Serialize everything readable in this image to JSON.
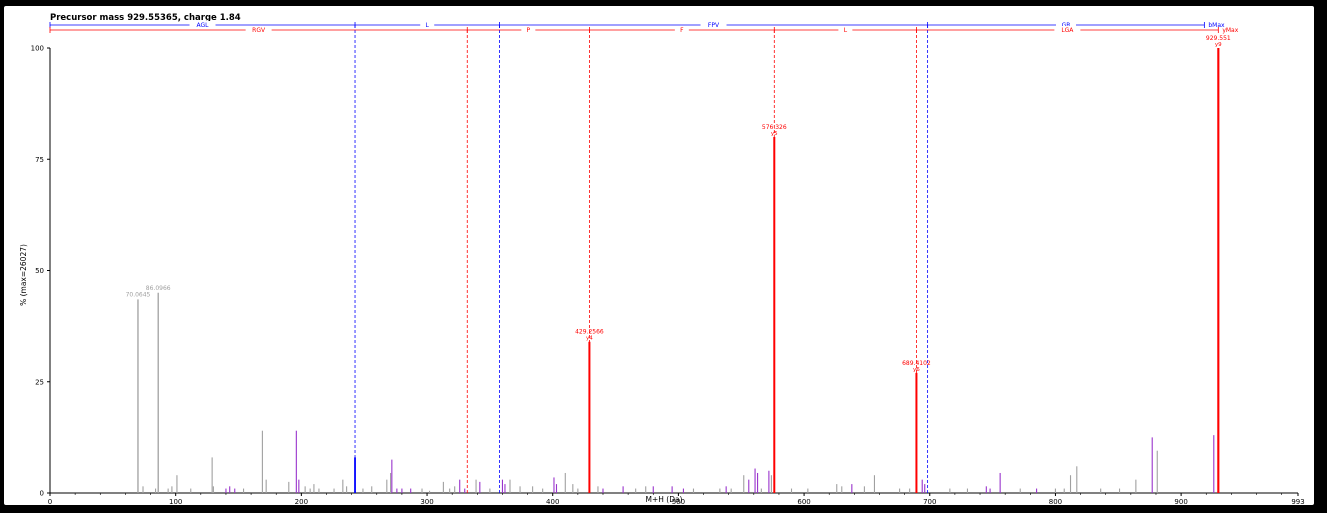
{
  "chart_data": {
    "type": "bar",
    "title": "Precursor mass 929.55365, charge 1.84",
    "xlabel": "M+H (Da)",
    "ylabel": "% (max=26027)",
    "xlim": [
      0,
      993
    ],
    "ylim": [
      0,
      100
    ],
    "x_ticks": [
      "0",
      "100",
      "200",
      "300",
      "400",
      "500",
      "600",
      "700",
      "800",
      "900",
      "993"
    ],
    "y_ticks": [
      "0",
      "25",
      "50",
      "75",
      "100"
    ],
    "colors": {
      "unmatched": "#a0a0a0",
      "b_ions": "#0000ff",
      "y_ions": "#ff0000",
      "internal": "#9933cc"
    },
    "b_ladder": {
      "label_first": "AGL",
      "segments": [
        "L",
        "FPV",
        "GR"
      ],
      "label_end": "bMax",
      "breaks": [
        242.7,
        357.6,
        698.3,
        918.5
      ]
    },
    "y_ladder": {
      "label_first": "RGV",
      "segments": [
        "P",
        "F",
        "L",
        "LGA"
      ],
      "label_end": "yMax",
      "breaks": [
        332.0,
        429.2,
        576.3,
        689.4,
        929.6
      ]
    },
    "labeled_peaks": [
      {
        "x": 70.0,
        "y": 43.5,
        "label": "70.0645",
        "sublabel": "",
        "kind": "unmatched"
      },
      {
        "x": 86.1,
        "y": 45,
        "label": "86.0966",
        "sublabel": "",
        "kind": "unmatched"
      },
      {
        "x": 429.2,
        "y": 34,
        "label": "429.2566",
        "sublabel": "y4",
        "kind": "y"
      },
      {
        "x": 576.3,
        "y": 80,
        "label": "576.326",
        "sublabel": "y5",
        "kind": "y"
      },
      {
        "x": 689.4,
        "y": 27,
        "label": "689.4102",
        "sublabel": "y6",
        "kind": "y"
      },
      {
        "x": 929.6,
        "y": 100,
        "label": "929.551",
        "sublabel": "y9",
        "kind": "y"
      }
    ],
    "peaks": [
      [
        74,
        1.5,
        "unmatched"
      ],
      [
        84,
        1,
        "unmatched"
      ],
      [
        94,
        1,
        "unmatched"
      ],
      [
        97,
        1.5,
        "unmatched"
      ],
      [
        101,
        4,
        "unmatched"
      ],
      [
        112,
        1,
        "unmatched"
      ],
      [
        129,
        8,
        "unmatched"
      ],
      [
        130,
        1.5,
        "unmatched"
      ],
      [
        140,
        1,
        "internal"
      ],
      [
        143,
        1.5,
        "internal"
      ],
      [
        147,
        1,
        "internal"
      ],
      [
        154,
        1,
        "unmatched"
      ],
      [
        169,
        14,
        "unmatched"
      ],
      [
        172,
        3,
        "unmatched"
      ],
      [
        190,
        2.5,
        "unmatched"
      ],
      [
        196,
        14,
        "internal"
      ],
      [
        198,
        3,
        "internal"
      ],
      [
        203,
        1.5,
        "unmatched"
      ],
      [
        207,
        1,
        "unmatched"
      ],
      [
        210,
        2,
        "unmatched"
      ],
      [
        214,
        1,
        "unmatched"
      ],
      [
        226,
        1,
        "unmatched"
      ],
      [
        233,
        3,
        "unmatched"
      ],
      [
        236,
        1.5,
        "unmatched"
      ],
      [
        242.7,
        8,
        "b"
      ],
      [
        249,
        1,
        "unmatched"
      ],
      [
        256,
        1.5,
        "unmatched"
      ],
      [
        268,
        3,
        "unmatched"
      ],
      [
        271,
        4.5,
        "unmatched"
      ],
      [
        272,
        7.5,
        "internal"
      ],
      [
        276,
        1,
        "internal"
      ],
      [
        280,
        1,
        "internal"
      ],
      [
        287,
        1,
        "internal"
      ],
      [
        296,
        1,
        "unmatched"
      ],
      [
        302,
        0.5,
        "unmatched"
      ],
      [
        313,
        2.5,
        "unmatched"
      ],
      [
        318,
        1,
        "unmatched"
      ],
      [
        322,
        1.5,
        "unmatched"
      ],
      [
        326,
        3,
        "internal"
      ],
      [
        330,
        1,
        "internal"
      ],
      [
        339,
        3,
        "unmatched"
      ],
      [
        342,
        2.5,
        "internal"
      ],
      [
        350,
        1,
        "unmatched"
      ],
      [
        360,
        3,
        "internal"
      ],
      [
        362,
        2,
        "internal"
      ],
      [
        366,
        3,
        "unmatched"
      ],
      [
        374,
        1.5,
        "unmatched"
      ],
      [
        384,
        1.5,
        "unmatched"
      ],
      [
        392,
        1,
        "unmatched"
      ],
      [
        401,
        3.5,
        "internal"
      ],
      [
        403,
        2,
        "internal"
      ],
      [
        410,
        4.5,
        "unmatched"
      ],
      [
        416,
        2,
        "unmatched"
      ],
      [
        420,
        1,
        "unmatched"
      ],
      [
        436,
        1.5,
        "unmatched"
      ],
      [
        440,
        1,
        "internal"
      ],
      [
        456,
        1.5,
        "internal"
      ],
      [
        466,
        1,
        "unmatched"
      ],
      [
        474,
        1.5,
        "unmatched"
      ],
      [
        480,
        1.5,
        "internal"
      ],
      [
        495,
        1.5,
        "internal"
      ],
      [
        504,
        1,
        "internal"
      ],
      [
        512,
        1,
        "unmatched"
      ],
      [
        533,
        1,
        "unmatched"
      ],
      [
        538,
        1.5,
        "internal"
      ],
      [
        542,
        1,
        "unmatched"
      ],
      [
        552,
        4,
        "unmatched"
      ],
      [
        556,
        3,
        "internal"
      ],
      [
        561,
        5.5,
        "internal"
      ],
      [
        563,
        4.5,
        "internal"
      ],
      [
        566,
        1,
        "unmatched"
      ],
      [
        572,
        5,
        "internal"
      ],
      [
        574,
        4,
        "unmatched"
      ],
      [
        590,
        1,
        "unmatched"
      ],
      [
        603,
        1,
        "unmatched"
      ],
      [
        626,
        2,
        "unmatched"
      ],
      [
        630,
        1.5,
        "unmatched"
      ],
      [
        638,
        2,
        "internal"
      ],
      [
        648,
        1.5,
        "unmatched"
      ],
      [
        656,
        4,
        "unmatched"
      ],
      [
        676,
        1,
        "unmatched"
      ],
      [
        684,
        1,
        "unmatched"
      ],
      [
        694,
        3,
        "internal"
      ],
      [
        696,
        2,
        "internal"
      ],
      [
        716,
        1,
        "unmatched"
      ],
      [
        730,
        1,
        "unmatched"
      ],
      [
        745,
        1.5,
        "internal"
      ],
      [
        748,
        1,
        "internal"
      ],
      [
        756,
        4.5,
        "internal"
      ],
      [
        772,
        1,
        "unmatched"
      ],
      [
        785,
        1,
        "internal"
      ],
      [
        800,
        1,
        "unmatched"
      ],
      [
        807,
        1,
        "unmatched"
      ],
      [
        812,
        4,
        "unmatched"
      ],
      [
        817,
        6,
        "unmatched"
      ],
      [
        836,
        1,
        "unmatched"
      ],
      [
        851,
        1,
        "unmatched"
      ],
      [
        864,
        3,
        "unmatched"
      ],
      [
        877,
        12.5,
        "internal"
      ],
      [
        881,
        9.5,
        "unmatched"
      ],
      [
        926,
        13,
        "internal"
      ],
      [
        929.6,
        100,
        "y"
      ]
    ]
  }
}
